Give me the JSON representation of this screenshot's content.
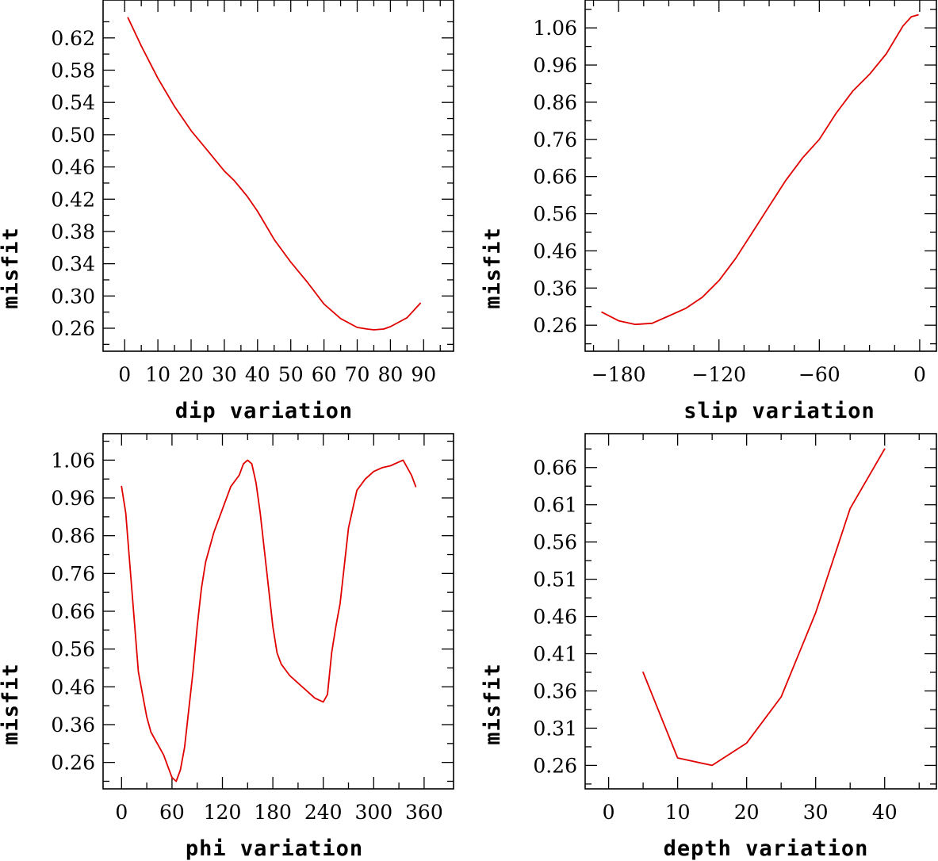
{
  "colors": {
    "line": "#e00000",
    "frame": "#000000",
    "background": "#ffffff"
  },
  "chart_data": [
    {
      "type": "line",
      "xlabel": "dip    variation",
      "ylabel": "misfit",
      "xlim": [
        -6.5,
        99
      ],
      "ylim": [
        0.2315,
        0.667
      ],
      "xticks": [
        0,
        10,
        20,
        30,
        40,
        50,
        60,
        70,
        80,
        90
      ],
      "xtick_labels": [
        "0",
        "10",
        "20",
        "30",
        "40",
        "50",
        "60",
        "70",
        "80",
        "90"
      ],
      "xminor": [
        5,
        15,
        25,
        35,
        45,
        55,
        65,
        75,
        85,
        95
      ],
      "yticks": [
        0.26,
        0.3,
        0.34,
        0.38,
        0.42,
        0.46,
        0.5,
        0.54,
        0.58,
        0.62
      ],
      "ytick_labels": [
        "0.26",
        "0.30",
        "0.34",
        "0.38",
        "0.42",
        "0.46",
        "0.50",
        "0.54",
        "0.58",
        "0.62"
      ],
      "yminor": [
        0.24,
        0.28,
        0.32,
        0.36,
        0.4,
        0.44,
        0.48,
        0.52,
        0.56,
        0.6,
        0.64
      ],
      "x": [
        1,
        5,
        10,
        15,
        20,
        25,
        30,
        33,
        35,
        37,
        40,
        45,
        50,
        55,
        60,
        65,
        70,
        73,
        75,
        78,
        80,
        85,
        89
      ],
      "y": [
        0.645,
        0.61,
        0.57,
        0.535,
        0.505,
        0.48,
        0.455,
        0.443,
        0.433,
        0.423,
        0.405,
        0.37,
        0.342,
        0.317,
        0.29,
        0.272,
        0.261,
        0.259,
        0.258,
        0.259,
        0.262,
        0.273,
        0.291
      ]
    },
    {
      "type": "line",
      "xlabel": "slip    variation",
      "ylabel": "misfit",
      "xlim": [
        -200,
        10
      ],
      "ylim": [
        0.19,
        1.135
      ],
      "xticks": [
        -180,
        -120,
        -60,
        0
      ],
      "xtick_labels": [
        "−180",
        "−120",
        "−60",
        "0"
      ],
      "xminor": [
        -195,
        -165,
        -150,
        -135,
        -105,
        -90,
        -75,
        -45,
        -30,
        -15
      ],
      "yticks": [
        0.26,
        0.36,
        0.46,
        0.56,
        0.66,
        0.76,
        0.86,
        0.96,
        1.06
      ],
      "ytick_labels": [
        "0.26",
        "0.36",
        "0.46",
        "0.56",
        "0.66",
        "0.76",
        "0.86",
        "0.96",
        "1.06"
      ],
      "yminor": [
        0.21,
        0.31,
        0.41,
        0.51,
        0.61,
        0.71,
        0.81,
        0.91,
        1.01,
        1.11
      ],
      "x": [
        -190,
        -180,
        -170,
        -160,
        -150,
        -140,
        -130,
        -120,
        -110,
        -100,
        -90,
        -80,
        -70,
        -60,
        -50,
        -40,
        -30,
        -20,
        -10,
        -5,
        -1
      ],
      "y": [
        0.295,
        0.272,
        0.262,
        0.265,
        0.285,
        0.305,
        0.335,
        0.38,
        0.44,
        0.51,
        0.58,
        0.65,
        0.71,
        0.76,
        0.83,
        0.89,
        0.935,
        0.99,
        1.065,
        1.09,
        1.095
      ]
    },
    {
      "type": "line",
      "xlabel": "phi    variation",
      "ylabel": "misfit",
      "xlim": [
        -22,
        395
      ],
      "ylim": [
        0.19,
        1.13
      ],
      "xticks": [
        0,
        60,
        120,
        180,
        240,
        300,
        360
      ],
      "xtick_labels": [
        "0",
        "60",
        "120",
        "180",
        "240",
        "300",
        "360"
      ],
      "xminor": [
        30,
        90,
        150,
        210,
        270,
        330
      ],
      "yticks": [
        0.26,
        0.36,
        0.46,
        0.56,
        0.66,
        0.76,
        0.86,
        0.96,
        1.06
      ],
      "ytick_labels": [
        "0.26",
        "0.36",
        "0.46",
        "0.56",
        "0.66",
        "0.76",
        "0.86",
        "0.96",
        "1.06"
      ],
      "yminor": [
        0.21,
        0.31,
        0.41,
        0.51,
        0.61,
        0.71,
        0.81,
        0.91,
        1.01,
        1.11
      ],
      "x": [
        0,
        5,
        10,
        15,
        20,
        25,
        30,
        35,
        40,
        45,
        50,
        55,
        60,
        65,
        70,
        75,
        80,
        85,
        90,
        95,
        100,
        110,
        120,
        130,
        140,
        145,
        150,
        155,
        160,
        165,
        170,
        175,
        180,
        185,
        190,
        200,
        210,
        220,
        230,
        240,
        245,
        250,
        255,
        260,
        270,
        280,
        290,
        300,
        310,
        320,
        330,
        335,
        340,
        345,
        350
      ],
      "y": [
        0.99,
        0.92,
        0.78,
        0.64,
        0.5,
        0.44,
        0.38,
        0.34,
        0.32,
        0.3,
        0.28,
        0.25,
        0.22,
        0.21,
        0.24,
        0.3,
        0.4,
        0.5,
        0.62,
        0.72,
        0.79,
        0.87,
        0.93,
        0.99,
        1.02,
        1.05,
        1.06,
        1.05,
        1.0,
        0.92,
        0.82,
        0.72,
        0.62,
        0.55,
        0.52,
        0.49,
        0.47,
        0.45,
        0.43,
        0.42,
        0.44,
        0.55,
        0.62,
        0.68,
        0.88,
        0.98,
        1.01,
        1.03,
        1.04,
        1.045,
        1.055,
        1.06,
        1.04,
        1.02,
        0.99
      ]
    },
    {
      "type": "line",
      "xlabel": "depth   variation",
      "ylabel": "misfit",
      "xlim": [
        -3.4,
        47.5
      ],
      "ylim": [
        0.2285,
        0.7055
      ],
      "xticks": [
        0,
        10,
        20,
        30,
        40
      ],
      "xtick_labels": [
        "0",
        "10",
        "20",
        "30",
        "40"
      ],
      "xminor": [
        5,
        15,
        25,
        35,
        45
      ],
      "yticks": [
        0.26,
        0.31,
        0.36,
        0.41,
        0.46,
        0.51,
        0.56,
        0.61,
        0.66
      ],
      "ytick_labels": [
        "0.26",
        "0.31",
        "0.36",
        "0.41",
        "0.46",
        "0.51",
        "0.56",
        "0.61",
        "0.66"
      ],
      "yminor": [
        0.235,
        0.285,
        0.335,
        0.385,
        0.435,
        0.485,
        0.535,
        0.585,
        0.635,
        0.685
      ],
      "x": [
        5,
        10,
        15,
        20,
        25,
        30,
        35,
        40
      ],
      "y": [
        0.385,
        0.27,
        0.26,
        0.29,
        0.352,
        0.465,
        0.605,
        0.685
      ]
    }
  ]
}
